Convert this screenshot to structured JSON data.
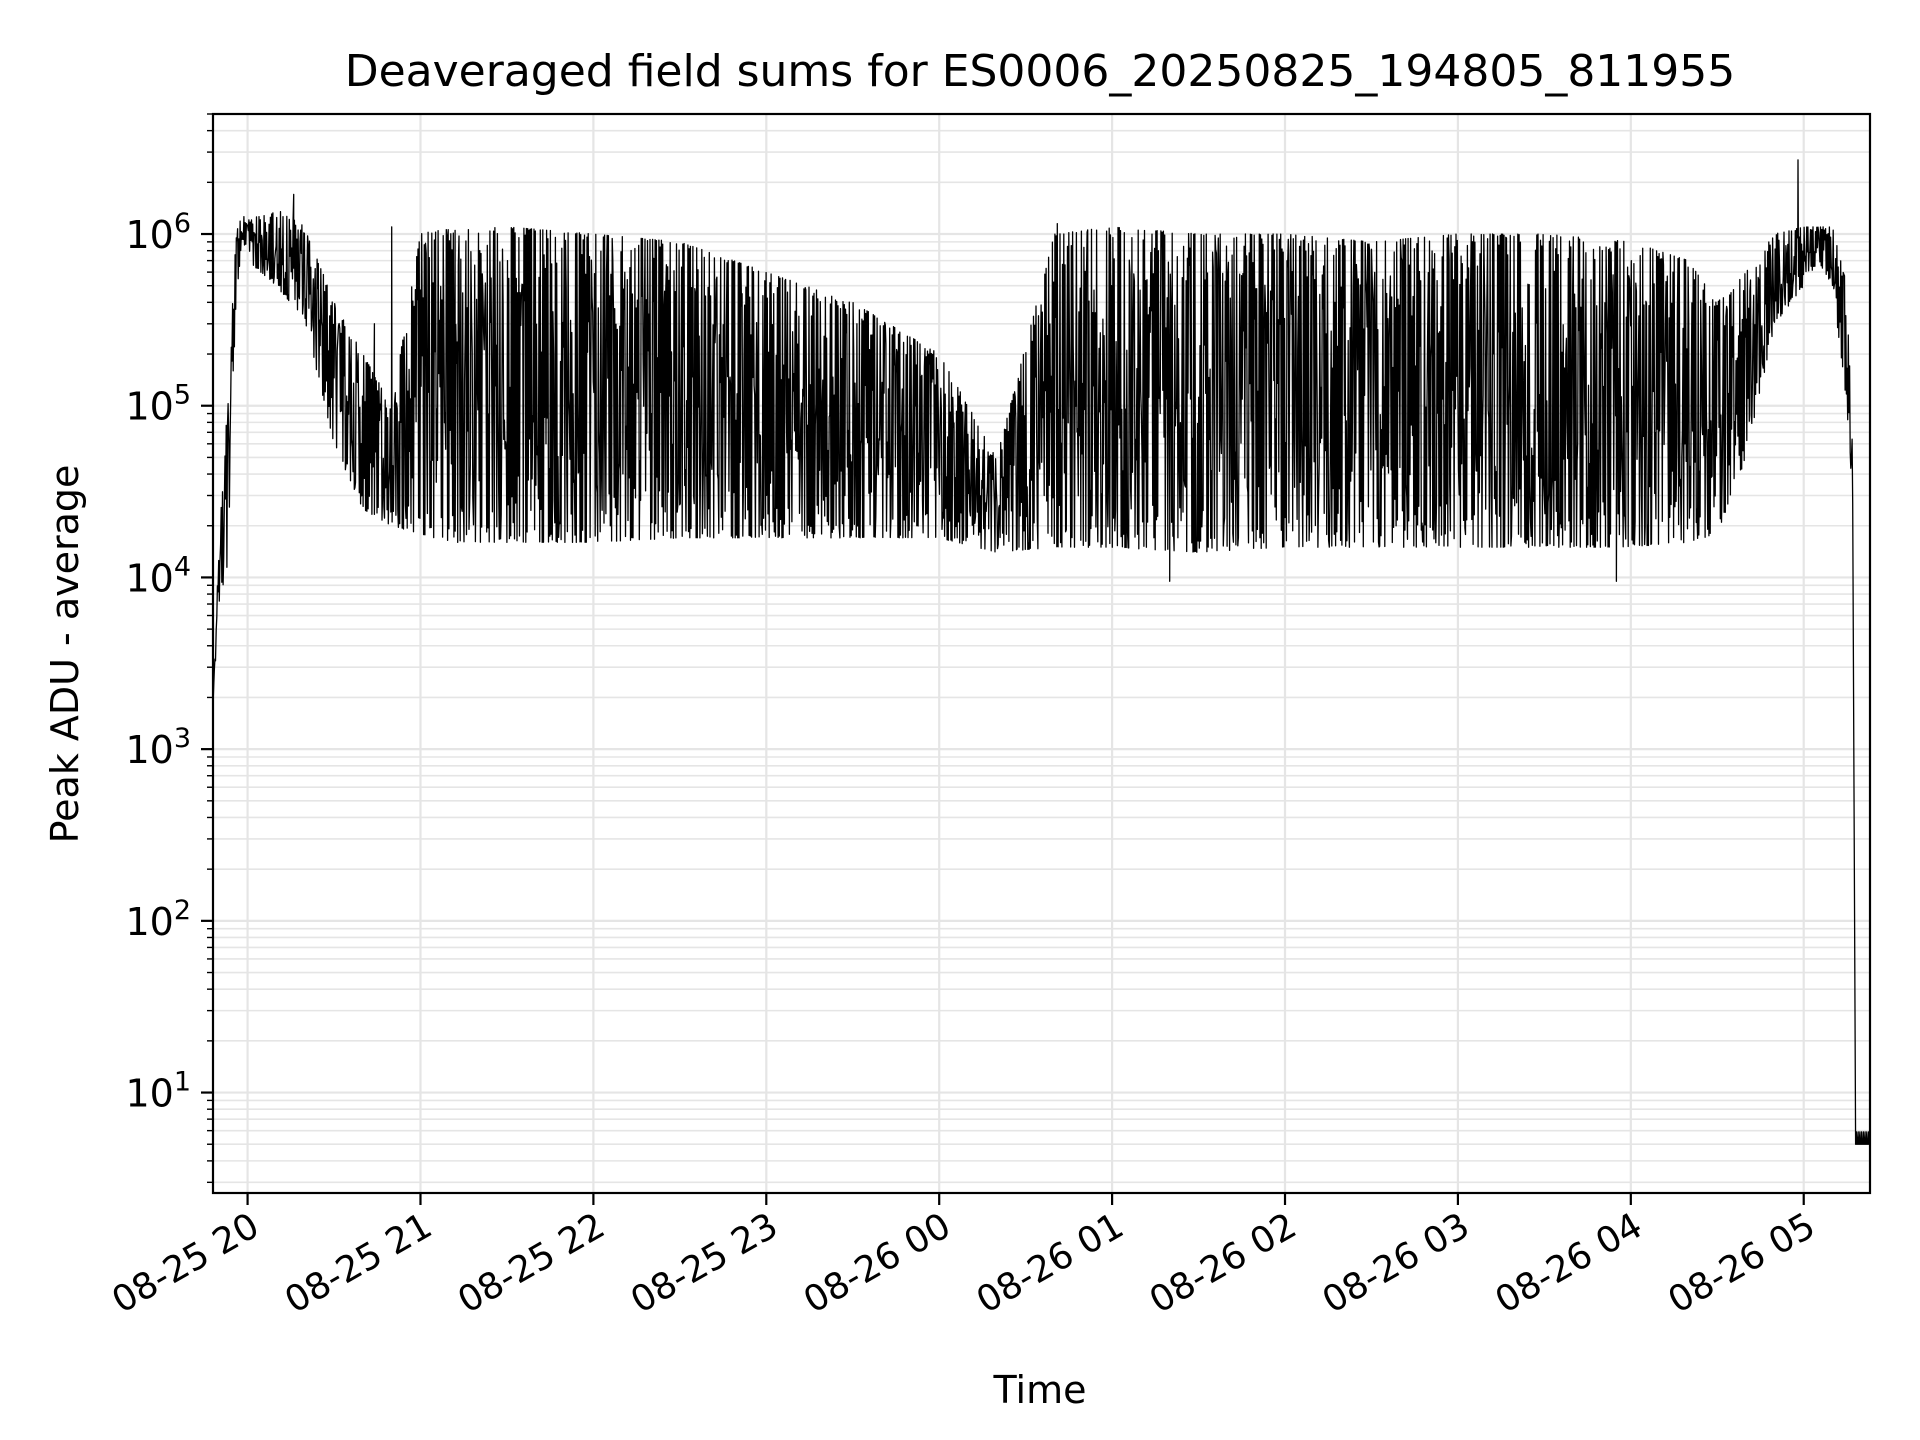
{
  "chart_data": {
    "type": "line",
    "title": "Deaveraged field sums for ES0006_20250825_194805_811955",
    "xlabel": "Time",
    "ylabel": "Peak ADU - average",
    "yscale": "log",
    "grid": true,
    "grid_color": "#e5e5e5",
    "line_color": "#000000",
    "x_ticks": [
      "08-25 20",
      "08-25 21",
      "08-25 22",
      "08-25 23",
      "08-26 00",
      "08-26 01",
      "08-26 02",
      "08-26 03",
      "08-26 04",
      "08-26 05"
    ],
    "x_range": [
      "2025-08-25 19:48",
      "2025-08-26 05:23"
    ],
    "y_ticks": [
      {
        "base": "10",
        "exp": "1"
      },
      {
        "base": "10",
        "exp": "2"
      },
      {
        "base": "10",
        "exp": "3"
      },
      {
        "base": "10",
        "exp": "4"
      },
      {
        "base": "10",
        "exp": "5"
      },
      {
        "base": "10",
        "exp": "6"
      }
    ],
    "ylim": [
      2.6,
      5000000
    ],
    "envelope": {
      "x": [
        "2025-08-25 19:48",
        "2025-08-25 19:50",
        "2025-08-25 19:53",
        "2025-08-25 19:56",
        "2025-08-25 19:58",
        "2025-08-25 20:00",
        "2025-08-25 20:10",
        "2025-08-25 20:20",
        "2025-08-25 20:30",
        "2025-08-25 20:40",
        "2025-08-25 20:50",
        "2025-08-25 21:00",
        "2025-08-25 21:10",
        "2025-08-25 21:30",
        "2025-08-25 22:00",
        "2025-08-25 22:30",
        "2025-08-25 23:00",
        "2025-08-25 23:30",
        "2025-08-26 00:00",
        "2025-08-26 00:20",
        "2025-08-26 00:40",
        "2025-08-26 01:00",
        "2025-08-26 01:30",
        "2025-08-26 02:00",
        "2025-08-26 02:30",
        "2025-08-26 03:00",
        "2025-08-26 03:30",
        "2025-08-26 04:00",
        "2025-08-26 04:20",
        "2025-08-26 04:30",
        "2025-08-26 04:40",
        "2025-08-26 04:50",
        "2025-08-26 05:00",
        "2025-08-26 05:05",
        "2025-08-26 05:10",
        "2025-08-26 05:15",
        "2025-08-26 05:17",
        "2025-08-26 05:18",
        "2025-08-26 05:23"
      ],
      "low": [
        1800,
        7000,
        11000,
        400000,
        900000,
        700000,
        500000,
        300000,
        60000,
        25000,
        20000,
        18000,
        16000,
        16000,
        16000,
        17000,
        17000,
        17000,
        17000,
        14000,
        15000,
        15000,
        14000,
        15000,
        15000,
        15000,
        15000,
        15000,
        16000,
        18000,
        50000,
        300000,
        500000,
        700000,
        500000,
        100000,
        20000,
        5,
        5
      ],
      "high": [
        1800,
        15000,
        100000,
        1000000,
        1300000,
        1200000,
        1400000,
        1100000,
        400000,
        200000,
        100000,
        1000000,
        1100000,
        1100000,
        1000000,
        900000,
        600000,
        400000,
        200000,
        50000,
        1000000,
        1100000,
        1000000,
        1000000,
        900000,
        1000000,
        1000000,
        900000,
        700000,
        400000,
        600000,
        1000000,
        1100000,
        1100000,
        1100000,
        500000,
        50000,
        5,
        5
      ]
    },
    "peaks": [
      {
        "x": "2025-08-25 20:16",
        "y": 1700000
      },
      {
        "x": "2025-08-25 20:50",
        "y": 1100000
      },
      {
        "x": "2025-08-25 21:12",
        "y": 1050000
      },
      {
        "x": "2025-08-26 00:41",
        "y": 1150000
      },
      {
        "x": "2025-08-26 04:58",
        "y": 2700000
      }
    ],
    "dips": [
      {
        "x": "2025-08-25 20:44",
        "y": 300000
      },
      {
        "x": "2025-08-26 01:20",
        "y": 9500
      },
      {
        "x": "2025-08-26 03:55",
        "y": 9500
      }
    ]
  }
}
